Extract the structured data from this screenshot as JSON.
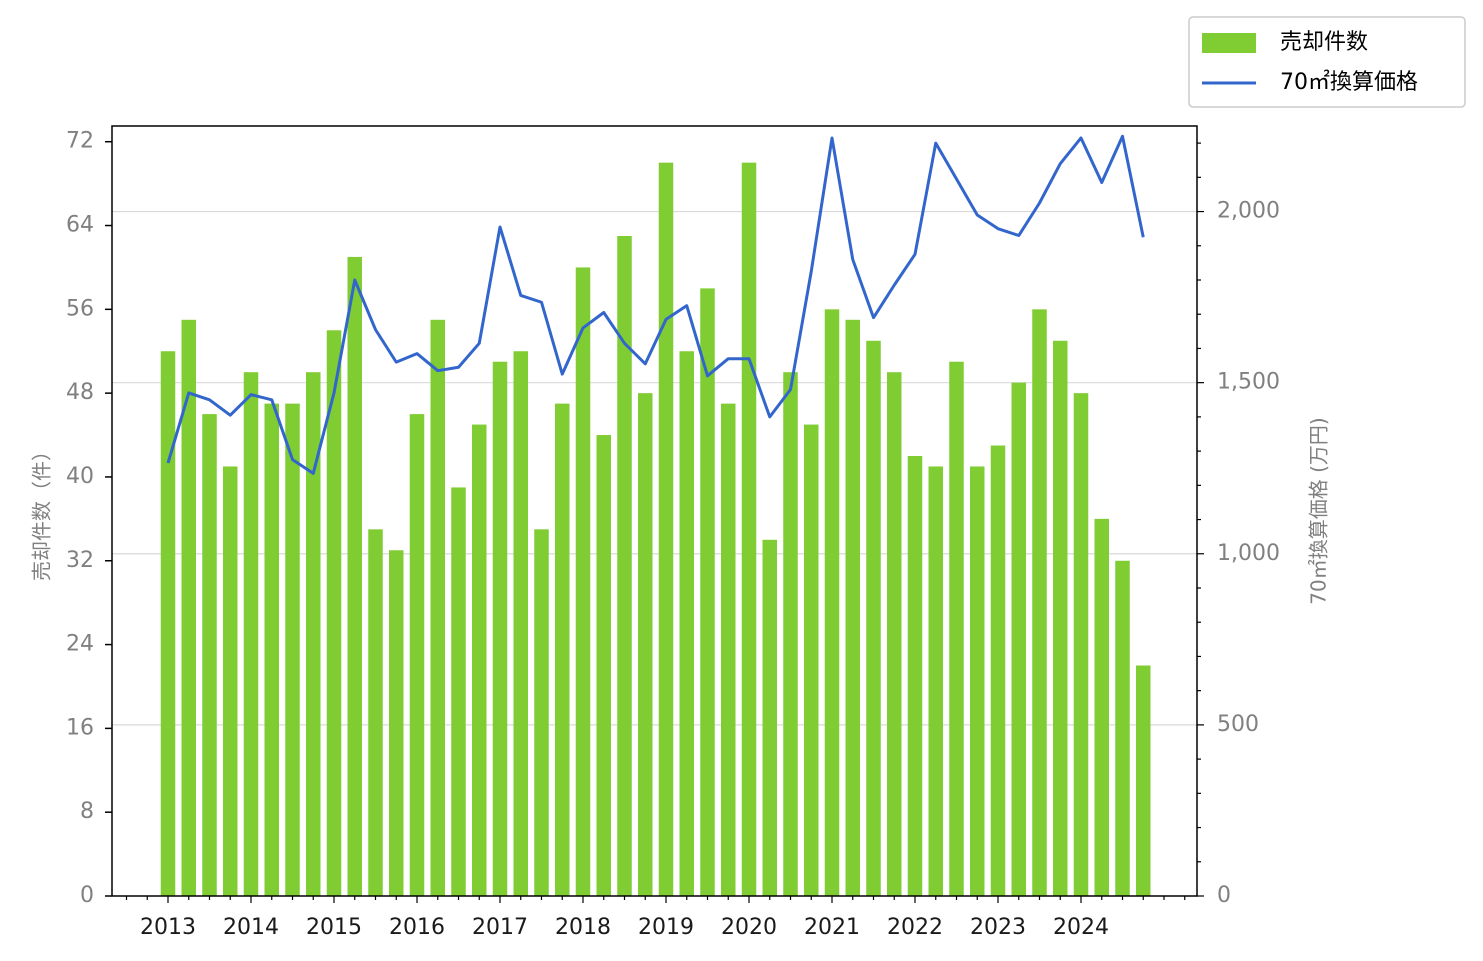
{
  "chart_data": {
    "type": "bar",
    "y_left_label": "売却件数（件）",
    "y_right_label": "70㎡換算価格 (万円)",
    "y_left_lim": [
      0,
      73.5
    ],
    "y_right_lim": [
      0,
      2250
    ],
    "y_left_ticks": [
      "0",
      "8",
      "16",
      "24",
      "32",
      "40",
      "48",
      "56",
      "64",
      "72"
    ],
    "y_right_ticks": [
      "0",
      "500",
      "1,000",
      "1,500",
      "2,000"
    ],
    "x_ticks": [
      "2013",
      "2014",
      "2015",
      "2016",
      "2017",
      "2018",
      "2019",
      "2020",
      "2021",
      "2022",
      "2023",
      "2024"
    ],
    "x_start_year": 2013,
    "periods_per_year": 4,
    "grid": "horizontal",
    "legend_position": "top-right",
    "series": [
      {
        "name": "売却件数",
        "type": "bar",
        "axis": "left",
        "color": "#7fcc33",
        "values": [
          52,
          55,
          46,
          41,
          50,
          47,
          47,
          50,
          54,
          61,
          35,
          33,
          46,
          55,
          39,
          45,
          51,
          52,
          35,
          47,
          60,
          44,
          63,
          48,
          70,
          52,
          58,
          47,
          70,
          34,
          50,
          45,
          56,
          55,
          53,
          50,
          42,
          41,
          51,
          41,
          43,
          49,
          56,
          53,
          48,
          36,
          32,
          22
        ]
      },
      {
        "name": "70㎡換算価格",
        "type": "line",
        "axis": "right",
        "color": "#3366cc",
        "values": [
          1265,
          1470,
          1450,
          1405,
          1465,
          1450,
          1275,
          1235,
          1470,
          1800,
          1655,
          1560,
          1585,
          1535,
          1545,
          1615,
          1955,
          1755,
          1735,
          1525,
          1660,
          1705,
          1615,
          1555,
          1685,
          1725,
          1520,
          1570,
          1570,
          1400,
          1480,
          1825,
          2215,
          1860,
          1690,
          1785,
          1875,
          2200,
          2095,
          1990,
          1950,
          1930,
          2025,
          2140,
          2215,
          2085,
          2220,
          1925
        ]
      }
    ]
  }
}
